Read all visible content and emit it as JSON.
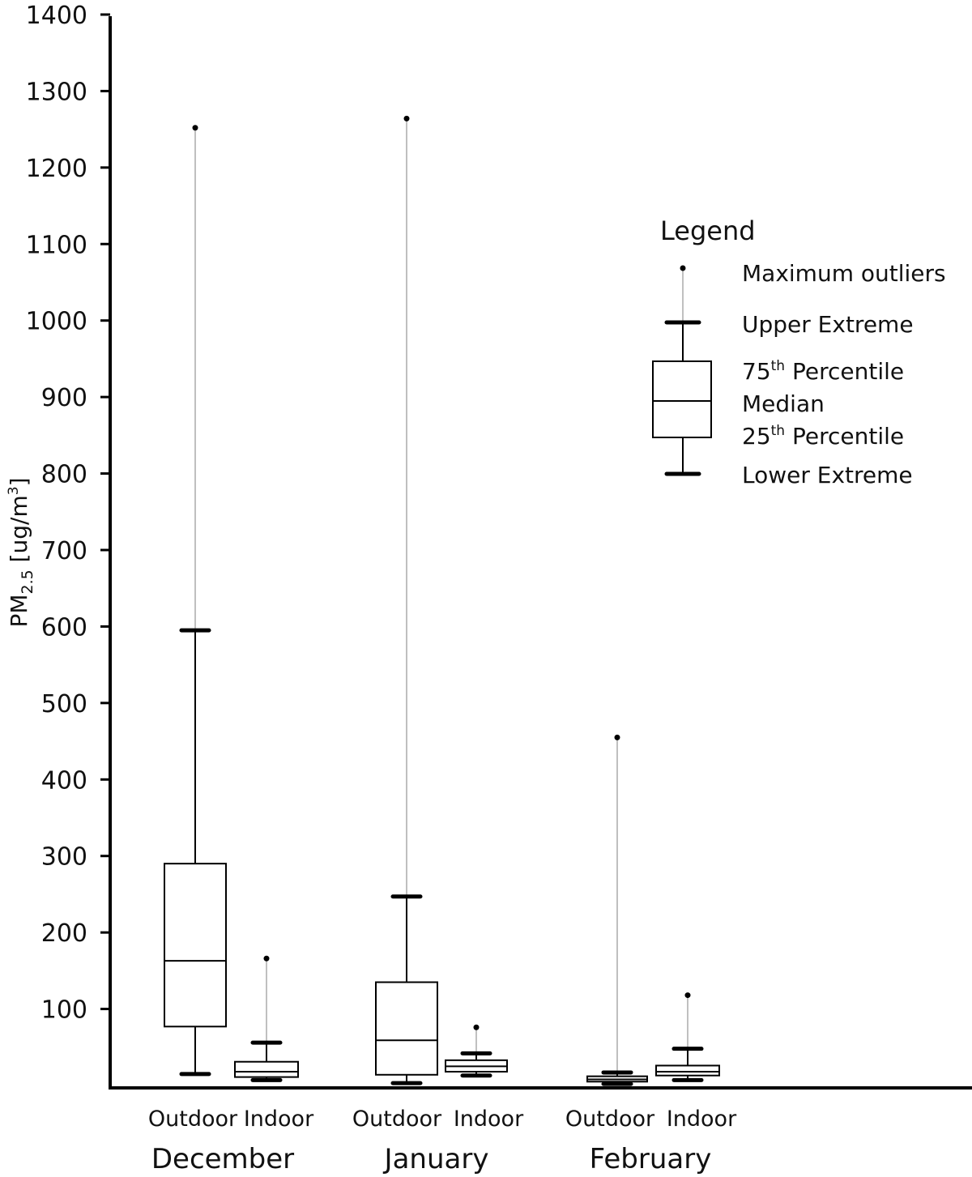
{
  "chart_data": {
    "type": "boxplot",
    "title": "",
    "ylabel": "PM2.5 [ug/m³]",
    "ylabel_parts": {
      "base": "PM",
      "sub": "2.5",
      "unit": " [ug/m",
      "sup": "3",
      "close": "]"
    },
    "ylim": [
      0,
      1400
    ],
    "yticks": [
      100,
      200,
      300,
      400,
      500,
      600,
      700,
      800,
      900,
      1000,
      1100,
      1200,
      1300,
      1400
    ],
    "groups": [
      "December",
      "January",
      "February"
    ],
    "series_labels": [
      "Outdoor",
      "Indoor"
    ],
    "boxes": [
      {
        "group": "December",
        "series": "Outdoor",
        "lower_extreme": 15,
        "q1": 77,
        "median": 163,
        "q3": 290,
        "upper_extreme": 595,
        "max_outlier": 1252
      },
      {
        "group": "December",
        "series": "Indoor",
        "lower_extreme": 7,
        "q1": 11,
        "median": 18,
        "q3": 31,
        "upper_extreme": 56,
        "max_outlier": 166
      },
      {
        "group": "January",
        "series": "Outdoor",
        "lower_extreme": 3,
        "q1": 14,
        "median": 59,
        "q3": 135,
        "upper_extreme": 247,
        "max_outlier": 1264
      },
      {
        "group": "January",
        "series": "Indoor",
        "lower_extreme": 13,
        "q1": 18,
        "median": 25,
        "q3": 33,
        "upper_extreme": 42,
        "max_outlier": 76
      },
      {
        "group": "February",
        "series": "Outdoor",
        "lower_extreme": 2,
        "q1": 5,
        "median": 8,
        "q3": 12,
        "upper_extreme": 17,
        "max_outlier": 455
      },
      {
        "group": "February",
        "series": "Indoor",
        "lower_extreme": 7,
        "q1": 13,
        "median": 18,
        "q3": 26,
        "upper_extreme": 48,
        "max_outlier": 118
      }
    ],
    "legend": {
      "title": "Legend",
      "position": "top-right",
      "items": {
        "max_outliers": "Maximum outliers",
        "upper_extreme": "Upper Extreme",
        "p75": {
          "base": "75",
          "sup": "th",
          "rest": " Percentile"
        },
        "median": "Median",
        "p25": {
          "base": "25",
          "sup": "th",
          "rest": " Percentile"
        },
        "lower_extreme": "Lower Extreme"
      }
    }
  }
}
